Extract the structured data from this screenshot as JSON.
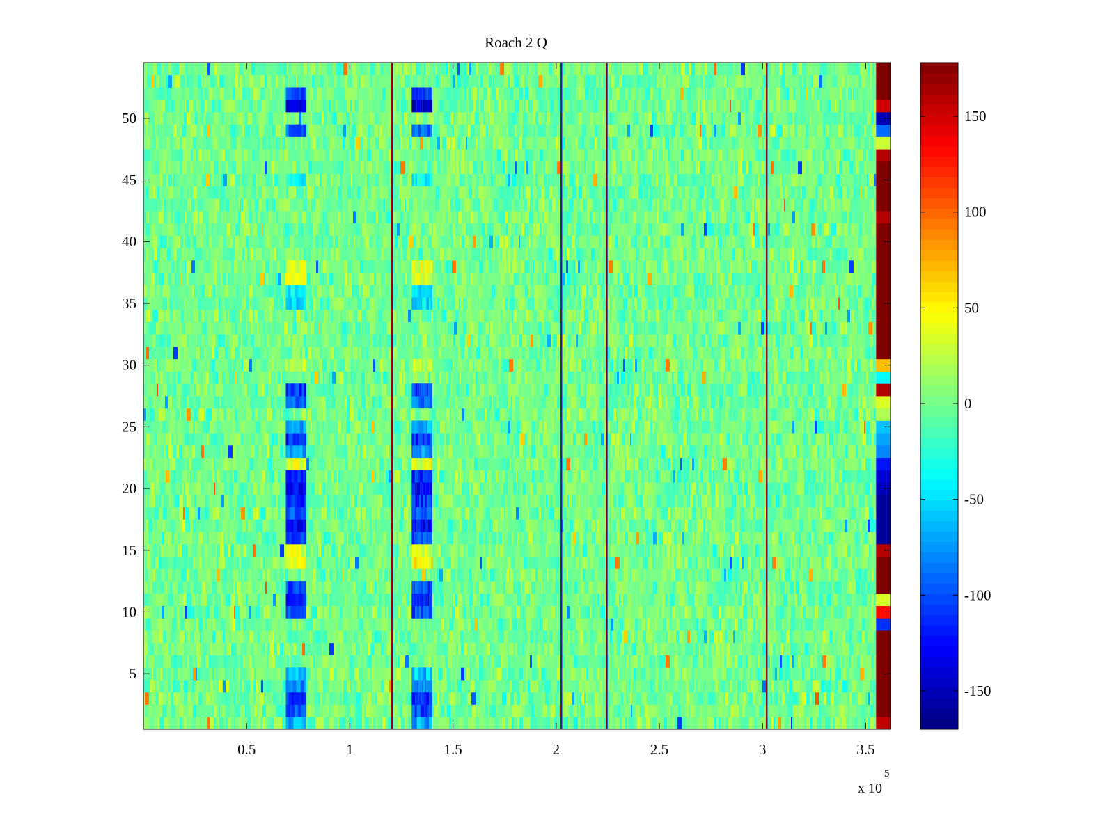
{
  "chart_data": {
    "type": "heatmap",
    "title": "Roach 2 Q",
    "xlabel": "",
    "ylabel": "",
    "x_multiplier_label": "x 10",
    "x_multiplier_exponent": "5",
    "xlim": [
      0,
      362000
    ],
    "ylim": [
      0.5,
      54.5
    ],
    "x_ticks": [
      {
        "value": 50000,
        "label": "0.5"
      },
      {
        "value": 100000,
        "label": "1"
      },
      {
        "value": 150000,
        "label": "1.5"
      },
      {
        "value": 200000,
        "label": "2"
      },
      {
        "value": 250000,
        "label": "2.5"
      },
      {
        "value": 300000,
        "label": "3"
      },
      {
        "value": 350000,
        "label": "3.5"
      }
    ],
    "y_ticks": [
      {
        "value": 5,
        "label": "5"
      },
      {
        "value": 10,
        "label": "10"
      },
      {
        "value": 15,
        "label": "15"
      },
      {
        "value": 20,
        "label": "20"
      },
      {
        "value": 25,
        "label": "25"
      },
      {
        "value": 30,
        "label": "30"
      },
      {
        "value": 35,
        "label": "35"
      },
      {
        "value": 40,
        "label": "40"
      },
      {
        "value": 45,
        "label": "45"
      },
      {
        "value": 50,
        "label": "50"
      }
    ],
    "rows": 54,
    "background_value_range": [
      -40,
      40
    ],
    "colormap": "jet",
    "colorbar": {
      "clim": [
        -170,
        178
      ],
      "ticks": [
        {
          "value": 150,
          "label": "150"
        },
        {
          "value": 100,
          "label": "100"
        },
        {
          "value": 50,
          "label": "50"
        },
        {
          "value": 0,
          "label": "0"
        },
        {
          "value": -50,
          "label": "-50"
        },
        {
          "value": -100,
          "label": "-100"
        },
        {
          "value": -150,
          "label": "-150"
        }
      ]
    },
    "event_lines_x": [
      120500,
      202500,
      224500,
      302000
    ],
    "event_columns": [
      {
        "x_center": 74000,
        "half_width": 5000
      },
      {
        "x_center": 135000,
        "half_width": 5000
      }
    ],
    "event_column_rows": [
      {
        "row": 1,
        "value": -70
      },
      {
        "row": 2,
        "value": -100
      },
      {
        "row": 3,
        "value": -110
      },
      {
        "row": 4,
        "value": -80
      },
      {
        "row": 5,
        "value": -60
      },
      {
        "row": 10,
        "value": -100
      },
      {
        "row": 11,
        "value": -120
      },
      {
        "row": 12,
        "value": -100
      },
      {
        "row": 14,
        "value": 50
      },
      {
        "row": 15,
        "value": 35
      },
      {
        "row": 16,
        "value": -100
      },
      {
        "row": 17,
        "value": -125
      },
      {
        "row": 18,
        "value": -100
      },
      {
        "row": 19,
        "value": -110
      },
      {
        "row": 20,
        "value": -130
      },
      {
        "row": 21,
        "value": -110
      },
      {
        "row": 22,
        "value": 35
      },
      {
        "row": 23,
        "value": -80
      },
      {
        "row": 24,
        "value": -110
      },
      {
        "row": 25,
        "value": -70
      },
      {
        "row": 27,
        "value": -90
      },
      {
        "row": 28,
        "value": -110
      },
      {
        "row": 30,
        "value": 25
      },
      {
        "row": 35,
        "value": -50
      },
      {
        "row": 36,
        "value": -45
      },
      {
        "row": 37,
        "value": 40
      },
      {
        "row": 38,
        "value": 40
      },
      {
        "row": 45,
        "value": -40
      },
      {
        "row": 49,
        "value": -90
      },
      {
        "row": 51,
        "value": -140
      },
      {
        "row": 52,
        "value": -100
      }
    ],
    "last_column": {
      "x_start": 355000,
      "x_end": 362000,
      "rows_from_bottom": [
        155,
        178,
        178,
        178,
        178,
        178,
        178,
        178,
        -110,
        130,
        35,
        178,
        178,
        178,
        160,
        -160,
        -160,
        -160,
        -160,
        -150,
        -140,
        -120,
        -80,
        -70,
        -60,
        20,
        35,
        160,
        -40,
        70,
        178,
        178,
        178,
        178,
        178,
        178,
        178,
        178,
        178,
        178,
        178,
        160,
        178,
        178,
        178,
        178,
        160,
        30,
        -90,
        -150,
        150,
        178,
        178,
        178
      ]
    }
  }
}
